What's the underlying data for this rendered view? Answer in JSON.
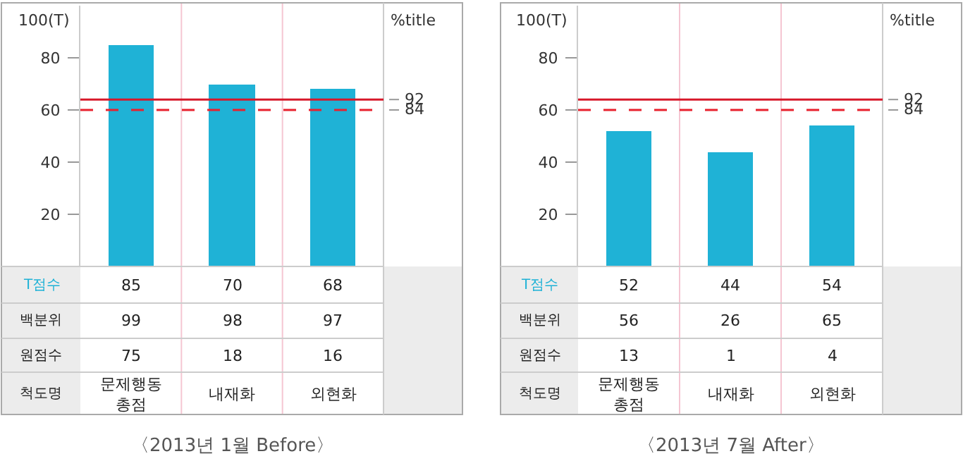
{
  "chart_data": [
    {
      "type": "bar",
      "title": "〈2013년 1월 Before〉",
      "ylabel": "100(T)",
      "y2label": "%title",
      "categories": [
        "문제행동\n총점",
        "내재화",
        "외현화"
      ],
      "series": [
        {
          "name": "T점수",
          "color": "#1fb2d6",
          "values": [
            85,
            70,
            68
          ]
        }
      ],
      "ylim": [
        0,
        100
      ],
      "yticks": [
        20,
        40,
        60,
        80
      ],
      "data_labels": true,
      "tick_labels": "y",
      "ref_lines": [
        {
          "axis": "y",
          "value": 64,
          "color": "#d7182a",
          "line_style": "solid"
        },
        {
          "axis": "y",
          "value": 60,
          "color": "#e8212e",
          "line_style": "dashed"
        }
      ],
      "annotations": [
        "백분위",
        "99",
        "98",
        "97",
        "원점수",
        "75",
        "18",
        "16",
        "척도명",
        "92",
        "84"
      ]
    },
    {
      "type": "bar",
      "title": "〈2013년 7월 After〉",
      "ylabel": "100(T)",
      "y2label": "%title",
      "categories": [
        "문제행동\n총점",
        "내재화",
        "외현화"
      ],
      "series": [
        {
          "name": "T점수",
          "color": "#1fb2d6",
          "values": [
            52,
            44,
            54
          ]
        }
      ],
      "ylim": [
        0,
        100
      ],
      "yticks": [
        20,
        40,
        60,
        80
      ],
      "data_labels": true,
      "tick_labels": "y",
      "ref_lines": [
        {
          "axis": "y",
          "value": 64,
          "color": "#d7182a",
          "line_style": "solid"
        },
        {
          "axis": "y",
          "value": 60,
          "color": "#e8212e",
          "line_style": "dashed"
        }
      ],
      "annotations": [
        "백분위",
        "56",
        "26",
        "65",
        "원점수",
        "13",
        "1",
        "4",
        "척도명",
        "92",
        "84"
      ]
    }
  ]
}
